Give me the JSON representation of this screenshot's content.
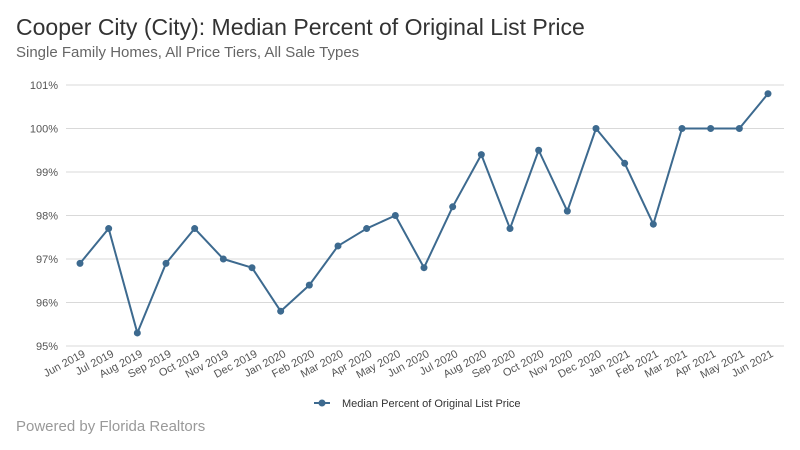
{
  "header": {
    "title": "Cooper City (City): Median Percent of Original List Price",
    "subtitle": "Single Family Homes, All Price Tiers, All Sale Types"
  },
  "footer": {
    "text": "Powered by Florida Realtors"
  },
  "colors": {
    "series": "#3d6a8f",
    "grid": "#d9d9d9"
  },
  "chart_data": {
    "type": "line",
    "title": "Cooper City (City): Median Percent of Original List Price",
    "subtitle": "Single Family Homes, All Price Tiers, All Sale Types",
    "xlabel": "",
    "ylabel": "",
    "ylim": [
      95,
      101
    ],
    "yticks": [
      "95%",
      "96%",
      "97%",
      "98%",
      "99%",
      "100%",
      "101%"
    ],
    "grid": true,
    "legend_position": "bottom-center",
    "categories": [
      "Jun 2019",
      "Jul 2019",
      "Aug 2019",
      "Sep 2019",
      "Oct 2019",
      "Nov 2019",
      "Dec 2019",
      "Jan 2020",
      "Feb 2020",
      "Mar 2020",
      "Apr 2020",
      "May 2020",
      "Jun 2020",
      "Jul 2020",
      "Aug 2020",
      "Sep 2020",
      "Oct 2020",
      "Nov 2020",
      "Dec 2020",
      "Jan 2021",
      "Feb 2021",
      "Mar 2021",
      "Apr 2021",
      "May 2021",
      "Jun 2021"
    ],
    "series": [
      {
        "name": "Median Percent of Original List Price",
        "values": [
          96.9,
          97.7,
          95.3,
          96.9,
          97.7,
          97.0,
          96.8,
          95.8,
          96.4,
          97.3,
          97.7,
          98.0,
          96.8,
          98.2,
          99.4,
          97.7,
          99.5,
          98.1,
          100.0,
          99.2,
          97.8,
          100.0,
          100.0,
          100.0,
          100.8
        ]
      }
    ]
  }
}
